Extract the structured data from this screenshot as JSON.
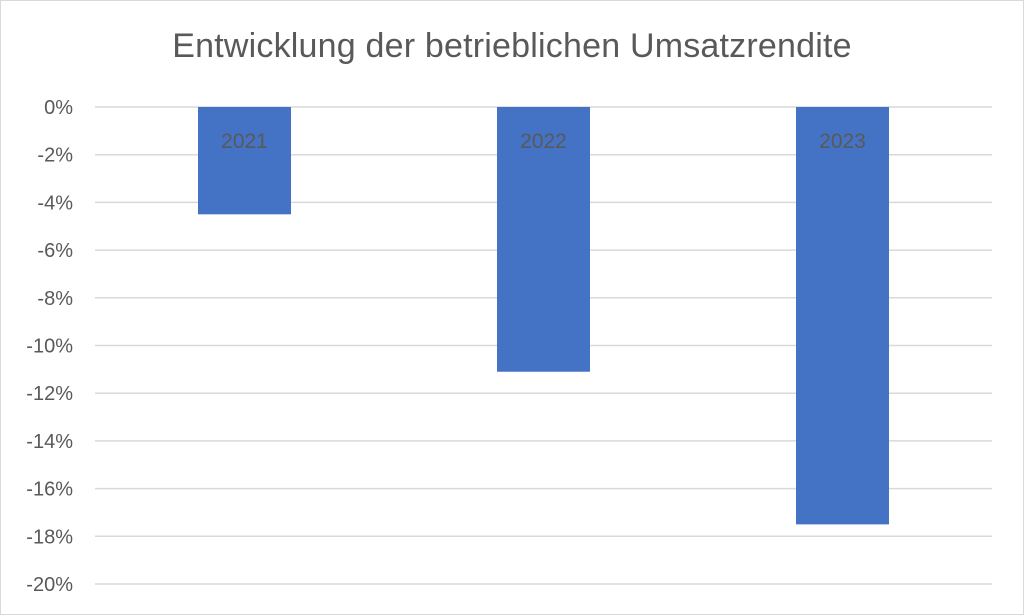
{
  "chart_data": {
    "type": "bar",
    "title": "Entwicklung der betrieblichen Umsatzrendite",
    "categories": [
      "2021",
      "2022",
      "2023"
    ],
    "series": [
      {
        "values": [
          -4.5,
          -11.1,
          -17.5
        ]
      }
    ],
    "value_unit": "%",
    "ylim": [
      -20,
      0
    ],
    "yticks": [
      0,
      -2,
      -4,
      -6,
      -8,
      -10,
      -12,
      -14,
      -16,
      -18,
      -20
    ],
    "ytick_labels": [
      "0%",
      "-2%",
      "-4%",
      "-6%",
      "-8%",
      "-10%",
      "-12%",
      "-14%",
      "-16%",
      "-18%",
      "-20%"
    ],
    "grid": true,
    "legend": "none",
    "category_labels_position": "inside-bar-top",
    "colors": {
      "bar": "#4472c4",
      "grid": "#d9d9d9",
      "text": "#595959"
    }
  }
}
